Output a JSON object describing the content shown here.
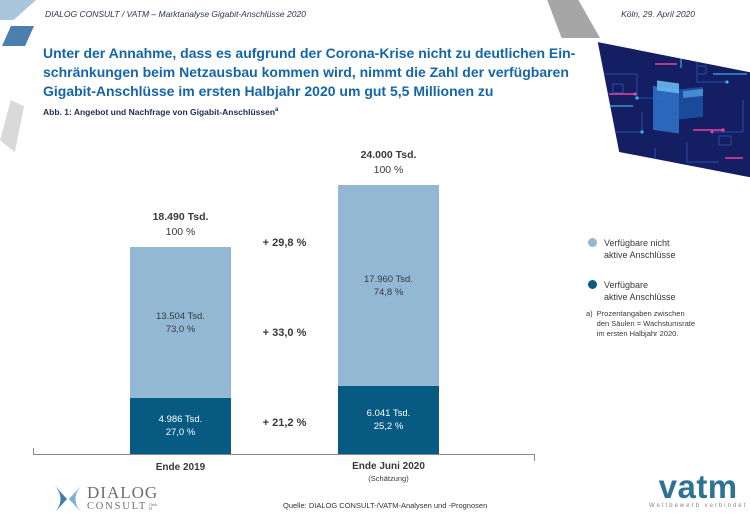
{
  "header": {
    "left": "DIALOG CONSULT / VATM – Marktanalyse Gigabit-Anschlüsse 2020",
    "right": "Köln, 29. April 2020"
  },
  "title_lines": [
    "Unter der Annahme, dass es aufgrund der Corona-Krise nicht zu deutlichen Ein-",
    "schränkungen beim Netzausbau kommen wird, nimmt die Zahl der verfügbaren",
    "Gigabit-Anschlüsse im ersten Halbjahr 2020 um gut 5,5 Millionen zu"
  ],
  "caption": {
    "text": "Abb. 1: Angebot und Nachfrage von Gigabit-Anschlüssen",
    "sup": "a"
  },
  "chart_data": {
    "type": "bar",
    "stacked": true,
    "title": "Angebot und Nachfrage von Gigabit-Anschlüssen",
    "unit": "Tsd.",
    "ylim": [
      0,
      24000
    ],
    "grid": false,
    "legend_position": "right",
    "categories": [
      "Ende 2019",
      "Ende Juni 2020"
    ],
    "category_notes": [
      "",
      "(Schätzung)"
    ],
    "series": [
      {
        "name": "Verfügbare nicht aktive Anschlüsse",
        "color": "#93b8d3",
        "values": [
          13504,
          17960
        ],
        "value_labels": [
          "13.504 Tsd.",
          "17.960 Tsd."
        ],
        "pct_labels": [
          "73,0 %",
          "74,8 %"
        ]
      },
      {
        "name": "Verfügbare aktive Anschlüsse",
        "color": "#075a82",
        "values": [
          4986,
          6041
        ],
        "value_labels": [
          "4.986 Tsd.",
          "6.041 Tsd."
        ],
        "pct_labels": [
          "27,0 %",
          "25,2 %"
        ]
      }
    ],
    "totals": [
      18490,
      24000
    ],
    "total_labels": [
      "18.490 Tsd.",
      "24.000 Tsd."
    ],
    "total_pct_labels": [
      "100 %",
      "100 %"
    ],
    "growth_labels": [
      "+ 29,8 %",
      "+ 33,0 %",
      "+ 21,2 %"
    ]
  },
  "legend": {
    "items": [
      {
        "line1": "Verfügbare nicht",
        "line2": "aktive Anschlüsse",
        "color": "#93b8d3"
      },
      {
        "line1": "Verfügbare",
        "line2": "aktive Anschlüsse",
        "color": "#075a82"
      }
    ],
    "footnote_marker": "a)",
    "footnote_lines": [
      "Prozentangaben zwischen",
      "den Säulen = Wachstumsrate",
      "im ersten Halbjahr 2020."
    ]
  },
  "footer": {
    "source": "Quelle: DIALOG CONSULT-/VATM-Analysen und -Prognosen",
    "dialog_logo_line1": "DIALOG",
    "dialog_logo_line2": "CONSULT",
    "dialog_logo_gmbh": "GmbH",
    "vatm_logo": "vatm",
    "vatm_tagline": "Wettbewerb verbindet"
  },
  "colors": {
    "title_blue": "#1565a9",
    "light_blue": "#93b8d3",
    "dark_blue": "#075a82",
    "axis_gray": "#8a8a8a"
  }
}
